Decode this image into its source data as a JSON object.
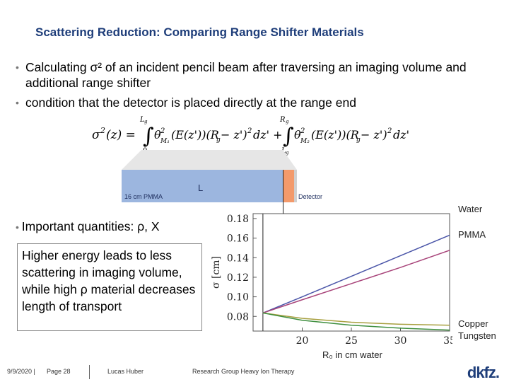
{
  "slide": {
    "title": "Scattering Reduction: Comparing Range Shifter Materials",
    "bullets": [
      "Calculating σ² of an incident pencil beam after traversing an imaging volume and additional range shifter",
      " condition that the detector is placed directly at the range end"
    ],
    "bullet2": "Important quantities: ρ, X",
    "highlight_text": "Higher energy leads to less scattering in imaging volume, while high ρ material decreases length of transport"
  },
  "schematic": {
    "pmma_label": "16 cm PMMA",
    "detector_label": "Detector",
    "l_label": "L"
  },
  "chart_data": {
    "type": "line",
    "xlabel": "R₀ in cm water",
    "ylabel": "σ [cm]",
    "xlim": [
      15,
      35
    ],
    "ylim": [
      0.065,
      0.185
    ],
    "xticks": [
      20,
      25,
      30,
      35
    ],
    "yticks": [
      0.08,
      0.1,
      0.12,
      0.14,
      0.16,
      0.18
    ],
    "vline_x": 16,
    "series": [
      {
        "name": "Water",
        "color": "#4a55a8",
        "x": [
          16,
          20,
          25,
          30,
          35
        ],
        "y": [
          0.0835,
          0.1,
          0.121,
          0.142,
          0.163
        ]
      },
      {
        "name": "PMMA",
        "color": "#a8447a",
        "x": [
          16,
          20,
          25,
          30,
          35
        ],
        "y": [
          0.0835,
          0.097,
          0.1135,
          0.13,
          0.1475
        ]
      },
      {
        "name": "Copper",
        "color": "#a8a040",
        "x": [
          16,
          20,
          25,
          30,
          35
        ],
        "y": [
          0.0835,
          0.078,
          0.074,
          0.072,
          0.071
        ]
      },
      {
        "name": "Tungsten",
        "color": "#3f8f3f",
        "x": [
          16,
          20,
          25,
          30,
          35
        ],
        "y": [
          0.0835,
          0.076,
          0.071,
          0.068,
          0.066
        ]
      }
    ]
  },
  "legend": {
    "water": "Water",
    "pmma": "PMMA",
    "copper": "Copper",
    "tungsten": "Tungsten"
  },
  "footer": {
    "date": "9/9/2020 |",
    "page": "Page 28",
    "author": "Lucas Huber",
    "group": "Research Group Heavy Ion Therapy",
    "logo": "dkfz."
  }
}
